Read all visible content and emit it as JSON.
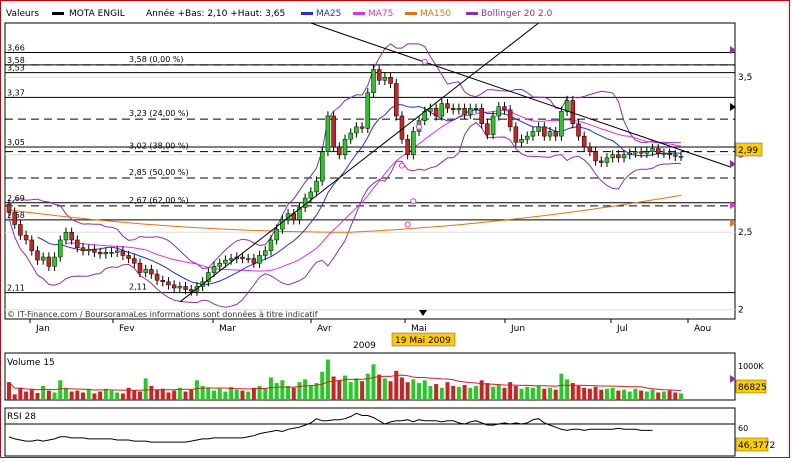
{
  "legend": {
    "valeurs": "Valeurs",
    "symbol": "MOTA ENGIL",
    "range": "Année +Bas: 2,10 +Haut: 3,65",
    "ma25": "MA25",
    "ma75": "MA75",
    "ma150": "MA150",
    "bollinger": "Bollinger 20 2.0"
  },
  "colors": {
    "up": "#22cc22",
    "down": "#cc2222",
    "ma25": "#2233cc",
    "ma75": "#dd33dd",
    "ma150": "#dd7711",
    "bollinger": "#8833aa",
    "highlight": "#ffcc00",
    "frame": "#cc0000"
  },
  "price_levels": [
    "3,66",
    "3,58",
    "3,53",
    "3,37",
    "3,05",
    "2,69",
    "2,58",
    "2,11"
  ],
  "fib_labels": [
    "3,58 (0,00 %)",
    "3,23 (24,00 %)",
    "3,02 (38,00 %)",
    "2,85 (50,00 %)",
    "2,67 (62,00 %)",
    "2,11"
  ],
  "current_price": "2,99",
  "selected_date": "19 Mai 2009",
  "year": "2009",
  "copyright": "© IT-Finance.com / BoursoramaLes informations sont données à titre indicatif",
  "volume": {
    "label": "Volume 15",
    "last_value": "86825",
    "axis_label": "1000K"
  },
  "rsi": {
    "label": "RSI 28",
    "last_value": "46,3772",
    "tick": "60"
  },
  "chart_data": {
    "type": "candlestick",
    "title": "MOTA ENGIL",
    "x_labels": [
      "Jan",
      "Fev",
      "Mar",
      "Avr",
      "Mai",
      "Jun",
      "Jul",
      "Aou"
    ],
    "y_ticks": [
      3.5,
      3.0,
      2.5,
      2.0
    ],
    "y_tick_labels": [
      "3,5",
      "3",
      "2,5",
      "2"
    ],
    "ylim": [
      1.94,
      3.85
    ],
    "close": [
      2.63,
      2.55,
      2.48,
      2.45,
      2.38,
      2.32,
      2.34,
      2.28,
      2.34,
      2.45,
      2.5,
      2.45,
      2.4,
      2.38,
      2.39,
      2.37,
      2.36,
      2.37,
      2.37,
      2.38,
      2.35,
      2.33,
      2.3,
      2.24,
      2.26,
      2.23,
      2.19,
      2.18,
      2.16,
      2.14,
      2.15,
      2.13,
      2.12,
      2.15,
      2.18,
      2.24,
      2.28,
      2.3,
      2.32,
      2.33,
      2.34,
      2.33,
      2.33,
      2.3,
      2.35,
      2.38,
      2.45,
      2.52,
      2.58,
      2.62,
      2.58,
      2.66,
      2.72,
      2.76,
      2.83,
      3.02,
      3.25,
      3.05,
      3.0,
      3.1,
      3.14,
      3.18,
      3.17,
      3.4,
      3.55,
      3.48,
      3.5,
      3.46,
      3.25,
      3.1,
      3.0,
      3.15,
      3.22,
      3.28,
      3.3,
      3.25,
      3.33,
      3.3,
      3.29,
      3.3,
      3.26,
      3.3,
      3.3,
      3.2,
      3.13,
      3.25,
      3.31,
      3.29,
      3.18,
      3.08,
      3.1,
      3.12,
      3.15,
      3.18,
      3.12,
      3.15,
      3.12,
      3.28,
      3.35,
      3.2,
      3.12,
      3.05,
      3.02,
      2.96,
      2.95,
      2.98,
      3.0,
      2.98,
      3.0,
      3.01,
      3.02,
      3.01,
      3.02,
      3.04,
      3.01,
      3.01,
      3.0,
      2.99,
      2.99
    ],
    "volume_k": [
      380,
      120,
      260,
      180,
      220,
      150,
      300,
      200,
      160,
      420,
      260,
      180,
      200,
      160,
      220,
      140,
      180,
      240,
      200,
      160,
      140,
      260,
      200,
      180,
      460,
      300,
      220,
      240,
      160,
      200,
      260,
      180,
      220,
      420,
      300,
      260,
      200,
      240,
      180,
      280,
      220,
      200,
      180,
      260,
      300,
      240,
      480,
      360,
      420,
      300,
      260,
      380,
      440,
      300,
      360,
      600,
      860,
      500,
      420,
      520,
      380,
      460,
      400,
      560,
      760,
      540,
      460,
      400,
      620,
      480,
      380,
      440,
      360,
      420,
      300,
      340,
      260,
      380,
      300,
      280,
      320,
      260,
      300,
      420,
      360,
      280,
      320,
      260,
      380,
      300,
      240,
      280,
      260,
      300,
      240,
      260,
      220,
      560,
      440,
      360,
      300,
      260,
      240,
      280,
      220,
      240,
      260,
      200,
      220,
      180,
      240,
      200,
      180,
      220,
      160,
      180,
      200,
      160,
      140
    ],
    "rsi": [
      48,
      46,
      45,
      44,
      44,
      45,
      44,
      45,
      46,
      48,
      48,
      47,
      47,
      47,
      46,
      46,
      46,
      46,
      46,
      45,
      45,
      45,
      44,
      44,
      44,
      43,
      43,
      43,
      43,
      43,
      43,
      43,
      44,
      45,
      46,
      46,
      47,
      47,
      47,
      47,
      47,
      47,
      48,
      49,
      51,
      52,
      53,
      54,
      53,
      55,
      56,
      57,
      59,
      61,
      65,
      63,
      63,
      64,
      64,
      65,
      67,
      70,
      68,
      68,
      66,
      63,
      60,
      62,
      63,
      63,
      64,
      62,
      64,
      63,
      63,
      63,
      62,
      63,
      63,
      61,
      60,
      62,
      63,
      61,
      59,
      59,
      60,
      61,
      60,
      61,
      60,
      61,
      64,
      65,
      61,
      59,
      57,
      55,
      54,
      55,
      55,
      54,
      55,
      55,
      55,
      55,
      55,
      56,
      55,
      55,
      55,
      54,
      54,
      54
    ],
    "candle_colors_note": "green = close above open, red = close below open",
    "grid": true
  }
}
